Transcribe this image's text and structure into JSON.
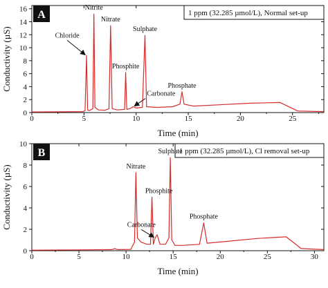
{
  "chart_data": [
    {
      "type": "line",
      "panel_label": "A",
      "legend": "1 ppm (32.285 µmol/L), Normal set-up",
      "xlabel": "Time (min)",
      "ylabel": "Conductivity (µS)",
      "xlim": [
        0,
        28
      ],
      "ylim": [
        0,
        16.5
      ],
      "xticks": [
        0,
        5,
        10,
        15,
        20,
        25
      ],
      "yticks": [
        0,
        2,
        4,
        6,
        8,
        10,
        12,
        14,
        16
      ],
      "grid": false,
      "color": "#d62b2b",
      "series": [
        {
          "values": [
            [
              0,
              0.1
            ],
            [
              3,
              0.12
            ],
            [
              4.9,
              0.15
            ],
            [
              5.1,
              0.3
            ],
            [
              5.25,
              8.8
            ],
            [
              5.35,
              0.4
            ],
            [
              5.5,
              0.3
            ],
            [
              5.85,
              0.6
            ],
            [
              5.95,
              15.2
            ],
            [
              6.05,
              0.8
            ],
            [
              6.4,
              0.4
            ],
            [
              7.0,
              0.35
            ],
            [
              7.4,
              0.6
            ],
            [
              7.55,
              13.4
            ],
            [
              7.7,
              0.6
            ],
            [
              8.2,
              0.4
            ],
            [
              8.9,
              0.5
            ],
            [
              9.0,
              6.2
            ],
            [
              9.1,
              0.5
            ],
            [
              9.4,
              0.6
            ],
            [
              9.7,
              0.9
            ],
            [
              10.0,
              0.7
            ],
            [
              10.6,
              0.8
            ],
            [
              10.85,
              11.9
            ],
            [
              11.0,
              0.9
            ],
            [
              12.0,
              0.8
            ],
            [
              13.5,
              0.9
            ],
            [
              14.2,
              1.3
            ],
            [
              14.4,
              3.2
            ],
            [
              14.6,
              1.3
            ],
            [
              15.5,
              1.0
            ],
            [
              18,
              1.2
            ],
            [
              21,
              1.45
            ],
            [
              23.8,
              1.55
            ],
            [
              25.5,
              0.25
            ],
            [
              28,
              0.15
            ]
          ]
        }
      ],
      "annotations": [
        {
          "text": "Nitrite",
          "x": 5.95,
          "y": 15.2
        },
        {
          "text": "Nitrate",
          "x": 7.55,
          "y": 13.4
        },
        {
          "text": "Chloride",
          "x": 5.25,
          "y": 8.8,
          "arrow": true
        },
        {
          "text": "Sulphate",
          "x": 10.85,
          "y": 11.9
        },
        {
          "text": "Phosphite",
          "x": 9.0,
          "y": 6.2
        },
        {
          "text": "Carbonate",
          "x": 9.7,
          "y": 0.9,
          "arrow": true
        },
        {
          "text": "Phosphate",
          "x": 14.4,
          "y": 3.2
        }
      ]
    },
    {
      "type": "line",
      "panel_label": "B",
      "legend": "1 ppm (32.285 µmol/L), Cl removal set-up",
      "xlabel": "Time (min)",
      "ylabel": "Conductivity (µS)",
      "xlim": [
        0,
        31
      ],
      "ylim": [
        0,
        10
      ],
      "xticks": [
        0,
        5,
        10,
        15,
        20,
        25,
        30
      ],
      "yticks": [
        0,
        2,
        4,
        6,
        8,
        10
      ],
      "grid": false,
      "color": "#d62b2b",
      "series": [
        {
          "values": [
            [
              0,
              0.05
            ],
            [
              5,
              0.08
            ],
            [
              8.5,
              0.1
            ],
            [
              8.8,
              0.2
            ],
            [
              9.1,
              0.1
            ],
            [
              10.5,
              0.12
            ],
            [
              10.9,
              0.8
            ],
            [
              11.05,
              7.3
            ],
            [
              11.2,
              1.2
            ],
            [
              11.6,
              0.8
            ],
            [
              12.2,
              0.6
            ],
            [
              12.6,
              0.6
            ],
            [
              12.75,
              5.0
            ],
            [
              12.9,
              0.6
            ],
            [
              13.1,
              1.2
            ],
            [
              13.3,
              1.5
            ],
            [
              13.6,
              0.6
            ],
            [
              14.2,
              0.6
            ],
            [
              14.55,
              1.2
            ],
            [
              14.7,
              8.7
            ],
            [
              14.85,
              1.0
            ],
            [
              15.2,
              0.5
            ],
            [
              16,
              0.5
            ],
            [
              17.8,
              0.6
            ],
            [
              18.25,
              2.6
            ],
            [
              18.6,
              0.7
            ],
            [
              21,
              0.9
            ],
            [
              24,
              1.15
            ],
            [
              27.0,
              1.3
            ],
            [
              28.6,
              0.2
            ],
            [
              31,
              0.1
            ]
          ]
        }
      ],
      "annotations": [
        {
          "text": "Nitrate",
          "x": 11.05,
          "y": 7.3
        },
        {
          "text": "Sulphate",
          "x": 14.7,
          "y": 8.7
        },
        {
          "text": "Phosphite",
          "x": 12.75,
          "y": 5.0
        },
        {
          "text": "Carbonate",
          "x": 13.1,
          "y": 1.2,
          "arrow": true
        },
        {
          "text": "Phosphate",
          "x": 18.25,
          "y": 2.6
        }
      ]
    }
  ]
}
